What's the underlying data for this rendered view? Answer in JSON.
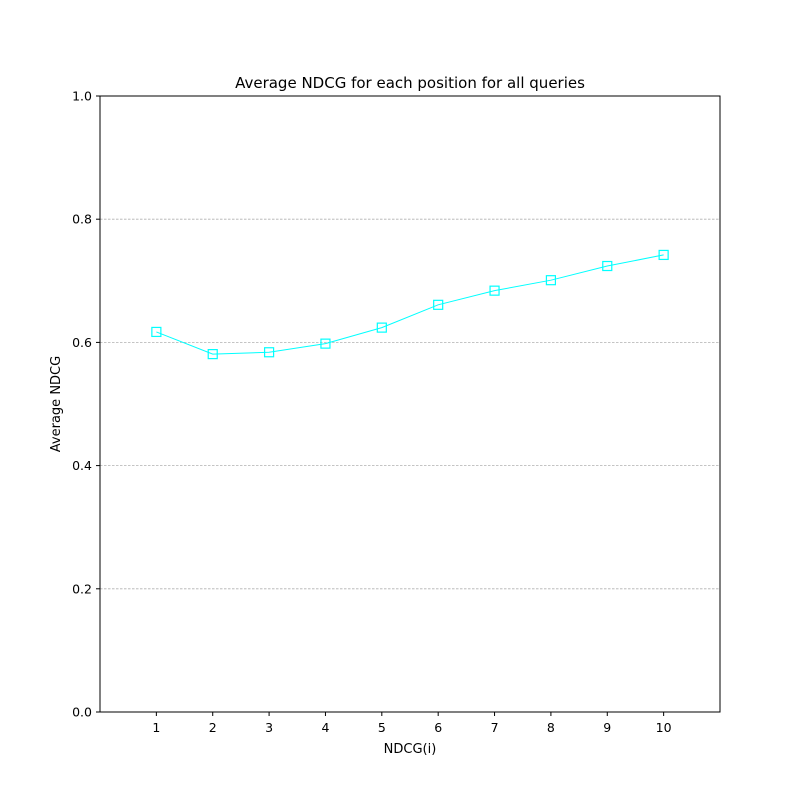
{
  "chart_data": {
    "type": "line",
    "title": "Average NDCG for each position for all queries",
    "xlabel": "NDCG(i)",
    "ylabel": "Average NDCG",
    "x": [
      1,
      2,
      3,
      4,
      5,
      6,
      7,
      8,
      9,
      10
    ],
    "x_tick_labels": [
      "1",
      "2",
      "3",
      "4",
      "5",
      "6",
      "7",
      "8",
      "9",
      "10"
    ],
    "xlim": [
      0,
      11
    ],
    "ylim": [
      0.0,
      1.0
    ],
    "y_ticks": [
      0.0,
      0.2,
      0.4,
      0.6,
      0.8,
      1.0
    ],
    "y_tick_labels": [
      "0.0",
      "0.2",
      "0.4",
      "0.6",
      "0.8",
      "1.0"
    ],
    "grid": "horizontal dashed",
    "legend": "none",
    "series": [
      {
        "values": [
          0.617,
          0.581,
          0.584,
          0.598,
          0.624,
          0.661,
          0.684,
          0.701,
          0.724,
          0.742
        ],
        "color": "#00ffff",
        "marker": "hollow-square"
      }
    ]
  }
}
